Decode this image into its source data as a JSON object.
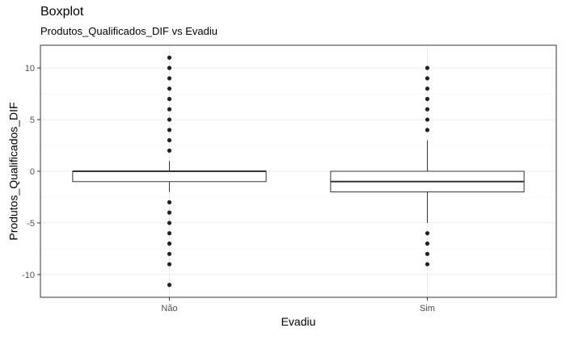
{
  "chart_data": {
    "type": "boxplot",
    "title": "Boxplot",
    "subtitle": "Produtos_Qualificados_DIF vs Evadiu",
    "xlabel": "Evadiu",
    "ylabel": "Produtos_Qualificados_DIF",
    "categories": [
      "Não",
      "Sim"
    ],
    "ylim": [
      -12.2,
      12.2
    ],
    "yticks": [
      -10,
      -5,
      0,
      5,
      10
    ],
    "grid": true,
    "legend": "none",
    "boxes": [
      {
        "category": "Não",
        "whisker_low": -2,
        "q1": -1,
        "median": 0,
        "q3": 0,
        "whisker_high": 1,
        "outliers": [
          -11,
          -9,
          -8,
          -7,
          -6,
          -5,
          -4,
          -3,
          2,
          3,
          4,
          5,
          6,
          7,
          8,
          9,
          10,
          11
        ]
      },
      {
        "category": "Sim",
        "whisker_low": -5,
        "q1": -2,
        "median": -1,
        "q3": 0,
        "whisker_high": 3,
        "outliers": [
          -9,
          -8,
          -7,
          -6,
          4,
          5,
          6,
          7,
          8,
          9,
          10
        ]
      }
    ]
  },
  "style": {
    "box_stroke": "#333333",
    "box_fill": "#ffffff",
    "point_color": "#222222",
    "grid_major": "#ebebeb",
    "grid_minor": "#f4f4f4",
    "panel_border": "#333333"
  }
}
